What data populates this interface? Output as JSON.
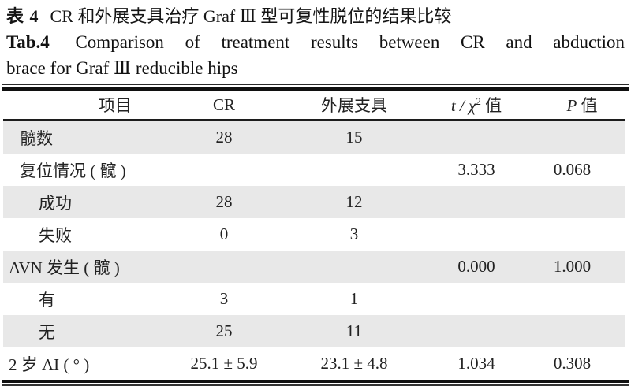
{
  "title": {
    "zh_prefix": "表 4",
    "zh_text": "CR 和外展支具治疗 Graf Ⅲ 型可复性脱位的结果比较",
    "en_prefix": "Tab.4",
    "en_line1": "Comparison of treatment results between CR and abduction",
    "en_line2": "brace for Graf Ⅲ reducible hips"
  },
  "table": {
    "columns": {
      "item": "项目",
      "cr": "CR",
      "brace": "外展支具",
      "stat_main": "t / χ",
      "stat_sup": "2",
      "stat_suffix": " 值",
      "p_main": "P",
      "p_suffix": " 值"
    },
    "rows": [
      {
        "label": "髋数",
        "indent": 1,
        "shaded": true,
        "cr": "28",
        "brace": "15",
        "stat": "",
        "p": ""
      },
      {
        "label": "复位情况 ( 髋 )",
        "indent": 1,
        "shaded": false,
        "cr": "",
        "brace": "",
        "stat": "3.333",
        "p": "0.068"
      },
      {
        "label": "成功",
        "indent": 2,
        "shaded": true,
        "cr": "28",
        "brace": "12",
        "stat": "",
        "p": ""
      },
      {
        "label": "失败",
        "indent": 2,
        "shaded": false,
        "cr": "0",
        "brace": "3",
        "stat": "",
        "p": ""
      },
      {
        "label": "AVN 发生 ( 髋 )",
        "indent": 0,
        "shaded": true,
        "cr": "",
        "brace": "",
        "stat": "0.000",
        "p": "1.000"
      },
      {
        "label": "有",
        "indent": 2,
        "shaded": false,
        "cr": "3",
        "brace": "1",
        "stat": "",
        "p": ""
      },
      {
        "label": "无",
        "indent": 2,
        "shaded": true,
        "cr": "25",
        "brace": "11",
        "stat": "",
        "p": ""
      },
      {
        "label": "2 岁 AI ( ° )",
        "indent": 0,
        "shaded": false,
        "cr": "25.1 ± 5.9",
        "brace": "23.1 ± 4.8",
        "stat": "1.034",
        "p": "0.308"
      }
    ]
  },
  "colors": {
    "row_shade": "#e8e8e8",
    "rule": "#111111",
    "text": "#1a1a1a",
    "background": "#ffffff"
  }
}
